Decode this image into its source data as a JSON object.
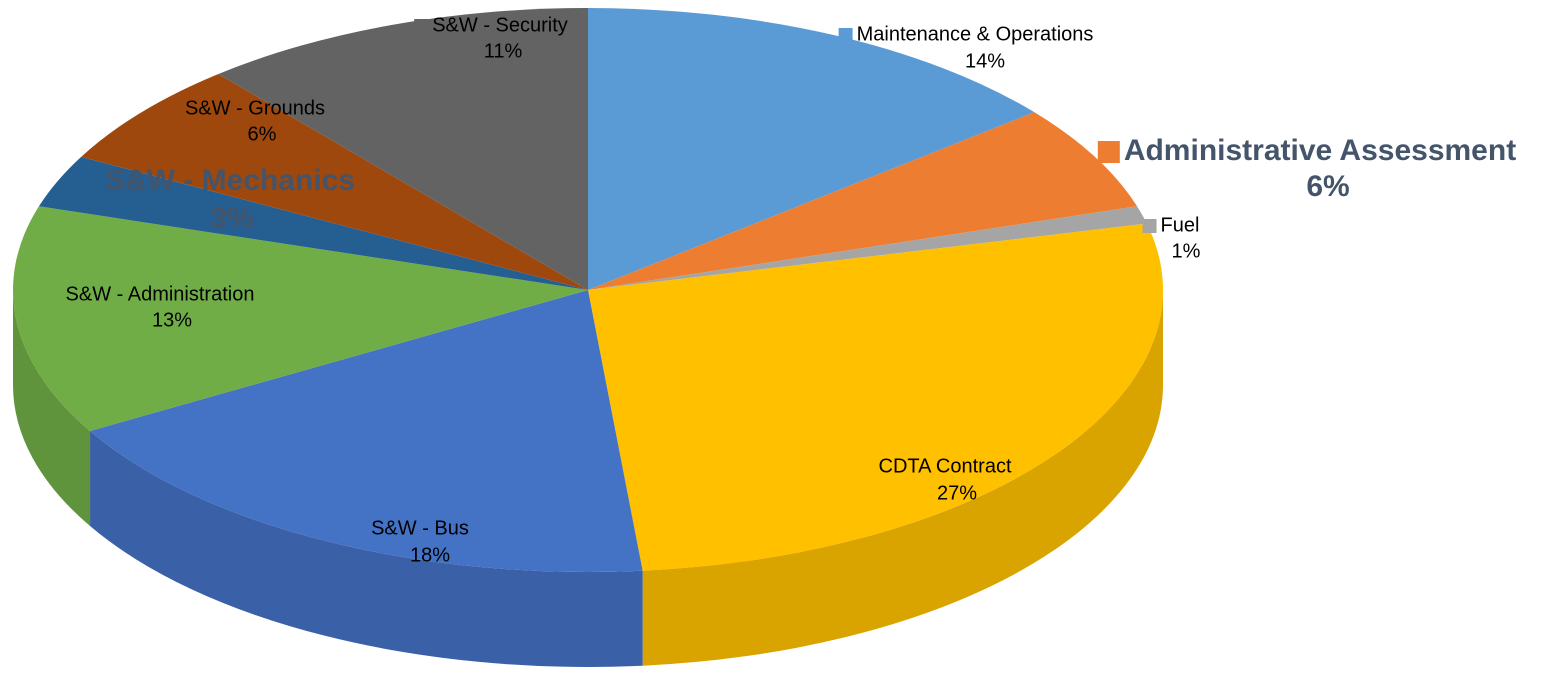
{
  "chart_data": {
    "type": "pie",
    "categories": [
      "Maintenance & Operations",
      "Administrative Assessment",
      "Fuel",
      "CDTA Contract",
      "S&W - Bus",
      "S&W - Administration",
      "S&W - Mechanics",
      "S&W - Grounds",
      "S&W - Security"
    ],
    "values": [
      14,
      6,
      1,
      27,
      18,
      13,
      3,
      6,
      11
    ],
    "value_labels": [
      "14%",
      "6%",
      "1%",
      "27%",
      "18%",
      "13%",
      "3%",
      "6%",
      "11%"
    ],
    "colors": [
      "#5b9bd5",
      "#ed7d31",
      "#a5a5a5",
      "#ffc000",
      "#4472c4",
      "#70ad47",
      "#255e91",
      "#9e480e",
      "#636363"
    ]
  }
}
